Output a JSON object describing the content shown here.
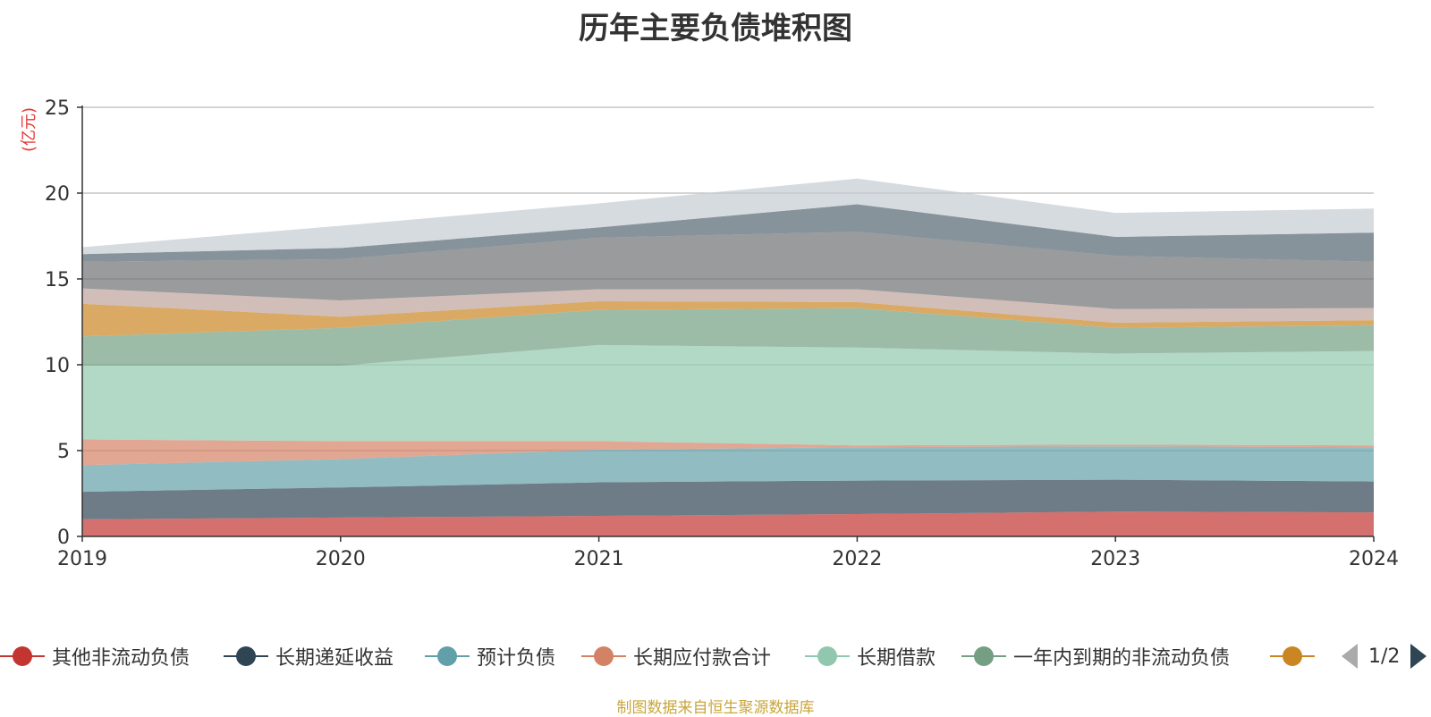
{
  "chart_data": {
    "type": "area",
    "stacked": true,
    "title": "历年主要负债堆积图",
    "ylabel": "(亿元)",
    "xlabel": "",
    "ylim": [
      0,
      25
    ],
    "y_ticks": [
      0,
      5,
      10,
      15,
      20,
      25
    ],
    "x": [
      "2019",
      "2020",
      "2021",
      "2022",
      "2023",
      "2024"
    ],
    "grid": true,
    "legend_position": "bottom",
    "legend_page": "1/2",
    "series": [
      {
        "name": "其他非流动负债",
        "color": "#c23531",
        "values": [
          1.0,
          1.1,
          1.2,
          1.3,
          1.45,
          1.4
        ]
      },
      {
        "name": "长期递延收益",
        "color": "#2f4554",
        "values": [
          1.6,
          1.75,
          1.95,
          1.95,
          1.85,
          1.8
        ]
      },
      {
        "name": "预计负债",
        "color": "#61a0a8",
        "values": [
          1.55,
          1.65,
          1.9,
          1.95,
          1.95,
          2.0
        ]
      },
      {
        "name": "长期应付款合计",
        "color": "#d48265",
        "values": [
          1.5,
          1.05,
          0.5,
          0.1,
          0.1,
          0.1
        ]
      },
      {
        "name": "长期借款",
        "color": "#91c7ae",
        "values": [
          4.3,
          4.4,
          5.6,
          5.7,
          5.3,
          5.5
        ]
      },
      {
        "name": "一年内到期的非流动负债",
        "color": "#749f83",
        "values": [
          1.7,
          2.2,
          2.05,
          2.3,
          1.5,
          1.5
        ]
      },
      {
        "name": "",
        "color": "#ca8622",
        "values": [
          1.9,
          0.65,
          0.5,
          0.35,
          0.3,
          0.3
        ]
      },
      {
        "name": "",
        "color": "#bda29a",
        "values": [
          0.9,
          0.95,
          0.7,
          0.75,
          0.8,
          0.7
        ]
      },
      {
        "name": "",
        "color": "#6e7074",
        "values": [
          1.55,
          2.4,
          3.0,
          3.35,
          3.1,
          2.7
        ]
      },
      {
        "name": "",
        "color": "#546570",
        "values": [
          0.45,
          0.65,
          0.6,
          1.6,
          1.1,
          1.7
        ]
      },
      {
        "name": "",
        "color": "#c4ccd3",
        "values": [
          0.4,
          1.3,
          1.4,
          1.5,
          1.4,
          1.4
        ]
      }
    ]
  },
  "legend_items": [
    {
      "name": "其他非流动负债",
      "color": "#c23531"
    },
    {
      "name": "长期递延收益",
      "color": "#2f4554"
    },
    {
      "name": "预计负债",
      "color": "#61a0a8"
    },
    {
      "name": "长期应付款合计",
      "color": "#d48265"
    },
    {
      "name": "长期借款",
      "color": "#91c7ae"
    },
    {
      "name": "一年内到期的非流动负债",
      "color": "#749f83"
    },
    {
      "name": "",
      "color": "#ca8622"
    }
  ],
  "source_note": "制图数据来自恒生聚源数据库"
}
